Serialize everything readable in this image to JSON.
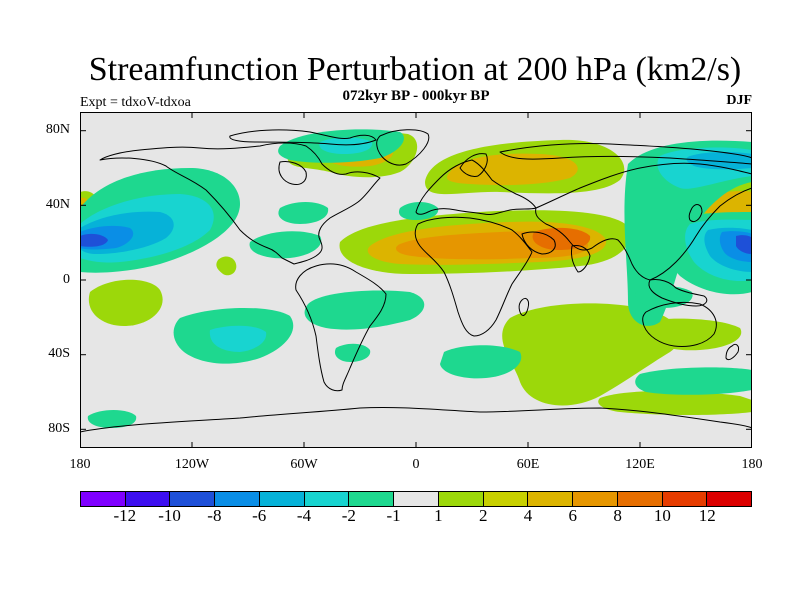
{
  "title": "Streamfunction Perturbation at 200 hPa (km2/s)",
  "subtitle": "072kyr BP - 000kyr BP",
  "left_label": "Expt = tdxoV-tdxoa",
  "right_label": "DJF",
  "lat_ticks": [
    "80N",
    "40N",
    "0",
    "40S",
    "80S"
  ],
  "lon_ticks": [
    "180",
    "120W",
    "60W",
    "0",
    "60E",
    "120E",
    "180"
  ],
  "colorbar": {
    "colors": [
      "#7f00ff",
      "#3d0ff0",
      "#1e50d8",
      "#0a8ee6",
      "#06b2d8",
      "#18d4d0",
      "#1ed88f",
      "#e6e6e6",
      "#9cd80a",
      "#c8d000",
      "#dcb400",
      "#e69600",
      "#e66e00",
      "#e63c00",
      "#dc0000"
    ],
    "labels": [
      "-12",
      "-10",
      "-8",
      "-6",
      "-4",
      "-2",
      "-1",
      "1",
      "2",
      "4",
      "6",
      "8",
      "10",
      "12"
    ]
  },
  "map": {
    "background": "#e6e6e6",
    "lon_range": [
      -180,
      180
    ],
    "lat_range": [
      -90,
      90
    ]
  }
}
